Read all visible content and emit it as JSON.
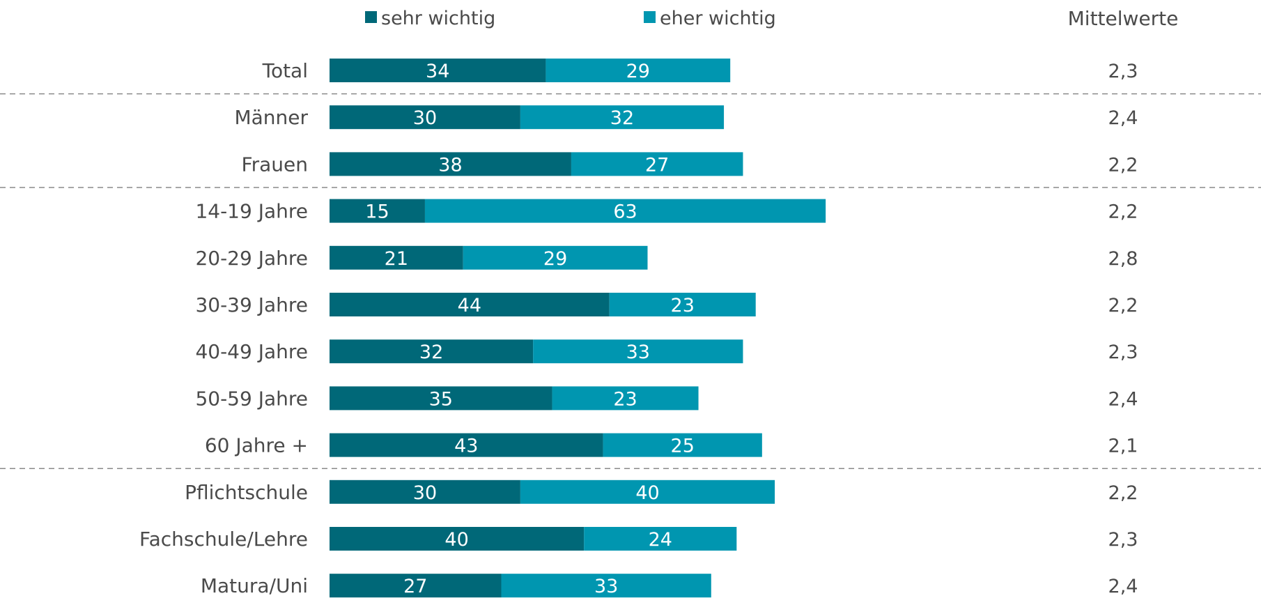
{
  "chart_data": {
    "type": "bar",
    "orientation": "horizontal",
    "stacked": true,
    "legend_position": "top",
    "categories": [
      "Total",
      "Männer",
      "Frauen",
      "14-19 Jahre",
      "20-29 Jahre",
      "30-39 Jahre",
      "40-49 Jahre",
      "50-59 Jahre",
      "60 Jahre +",
      "Pflichtschule",
      "Fachschule/Lehre",
      "Matura/Uni"
    ],
    "series": [
      {
        "name": "sehr wichtig",
        "color": "#006878",
        "values": [
          34,
          30,
          38,
          15,
          21,
          44,
          32,
          35,
          43,
          30,
          40,
          27
        ]
      },
      {
        "name": "eher wichtig",
        "color": "#0096b0",
        "values": [
          29,
          32,
          27,
          63,
          29,
          23,
          33,
          23,
          25,
          40,
          24,
          33
        ]
      }
    ],
    "means_header": "Mittelwerte",
    "means": [
      "2,3",
      "2,4",
      "2,2",
      "2,2",
      "2,8",
      "2,2",
      "2,3",
      "2,4",
      "2,1",
      "2,2",
      "2,3",
      "2,4"
    ],
    "group_dividers_after": [
      0,
      2,
      8
    ],
    "xlim": [
      0,
      100
    ]
  }
}
